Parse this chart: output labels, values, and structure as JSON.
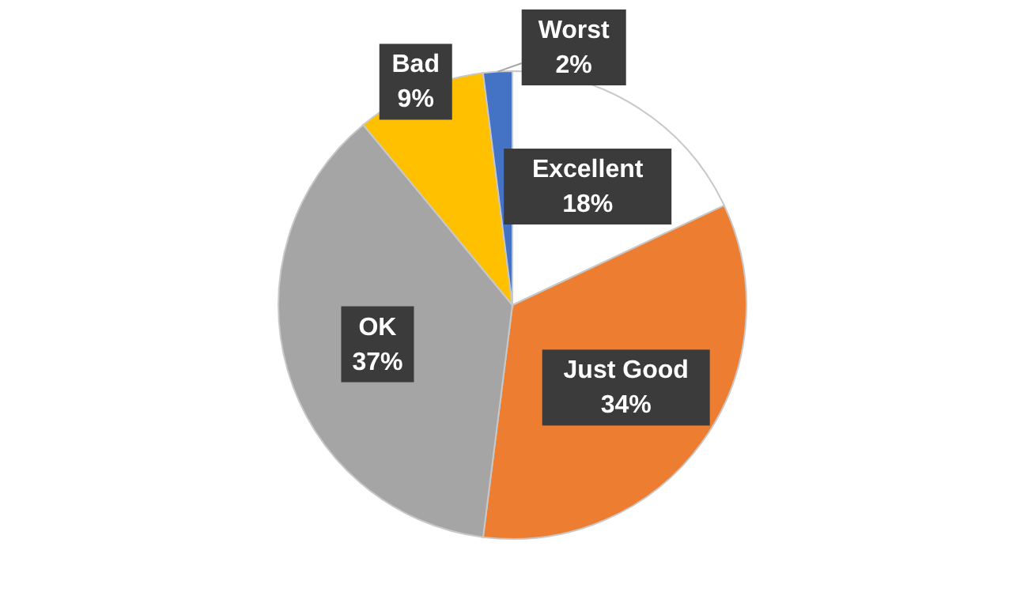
{
  "chart_data": {
    "type": "pie",
    "categories": [
      "Excellent",
      "Just Good",
      "OK",
      "Bad",
      "Worst"
    ],
    "values": [
      18,
      34,
      37,
      9,
      2
    ],
    "colors": [
      "#ffffff",
      "#ed7d31",
      "#a5a5a5",
      "#ffc000",
      "#4472c4"
    ],
    "value_labels": [
      "18%",
      "34%",
      "37%",
      "9%",
      "2%"
    ],
    "legend": false
  }
}
